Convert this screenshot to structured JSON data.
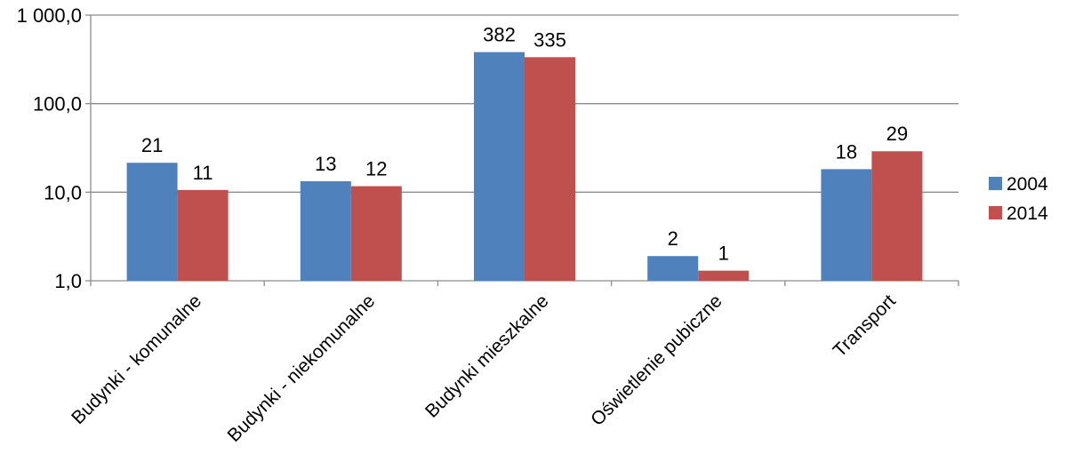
{
  "chart_data": {
    "type": "bar",
    "title": "",
    "xlabel": "",
    "ylabel": "",
    "y_scale": "log",
    "ylim": [
      1,
      1000
    ],
    "y_ticks": [
      1,
      10,
      100,
      1000
    ],
    "y_tick_labels": [
      "1,0",
      "10,0",
      "100,0",
      "1 000,0"
    ],
    "grid": true,
    "legend_position": "right",
    "categories": [
      "Budynki - komunalne",
      "Budynki - niekomunalne",
      "Budynki mieszkalne",
      "Oświetlenie pubiczne",
      "Transport"
    ],
    "series": [
      {
        "name": "2004",
        "color": "#4f81bd",
        "values": [
          21.5,
          13.3,
          382,
          1.9,
          18.2
        ],
        "labels": [
          "21",
          "13",
          "382",
          "2",
          "18"
        ]
      },
      {
        "name": "2014",
        "color": "#c0504d",
        "values": [
          10.6,
          11.7,
          335,
          1.3,
          29
        ],
        "labels": [
          "11",
          "12",
          "335",
          "1",
          "29"
        ]
      }
    ]
  }
}
